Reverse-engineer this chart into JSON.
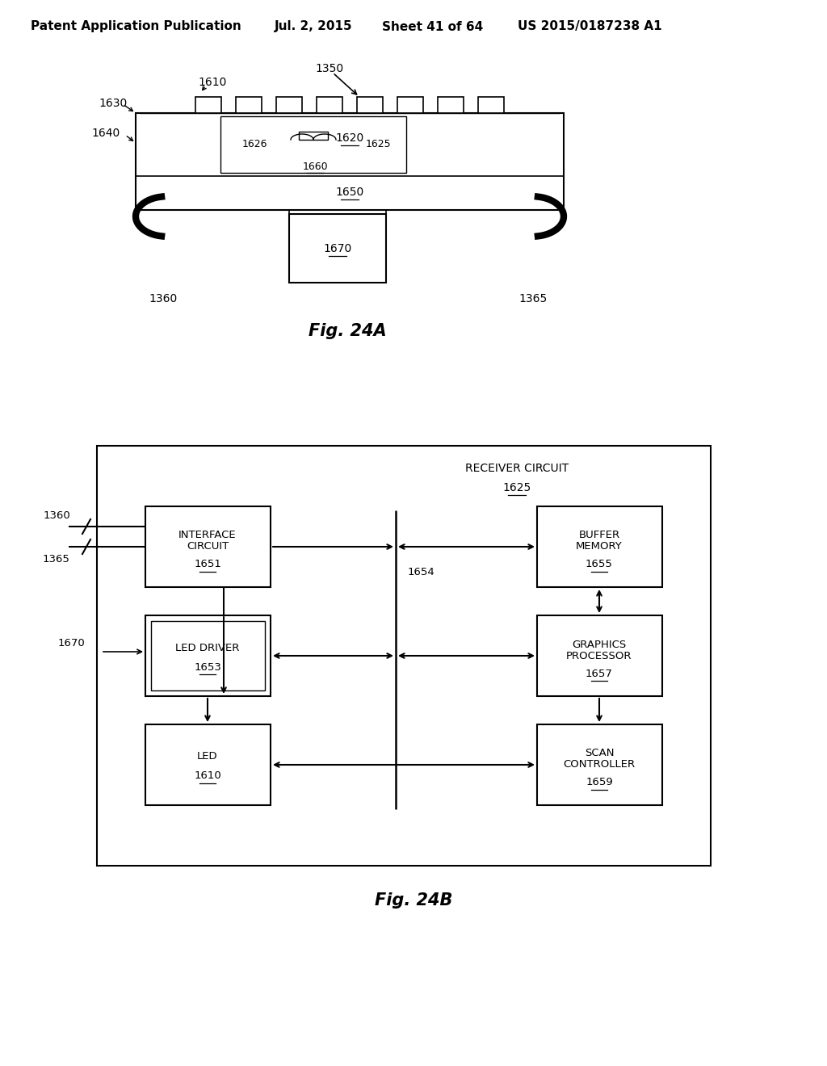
{
  "bg_color": "#ffffff",
  "header_text": "Patent Application Publication",
  "header_date": "Jul. 2, 2015",
  "header_sheet": "Sheet 41 of 64",
  "header_patent": "US 2015/0187238 A1",
  "fig24a_label": "Fig. 24A",
  "fig24b_label": "Fig. 24B",
  "text_color": "#000000",
  "line_color": "#000000"
}
